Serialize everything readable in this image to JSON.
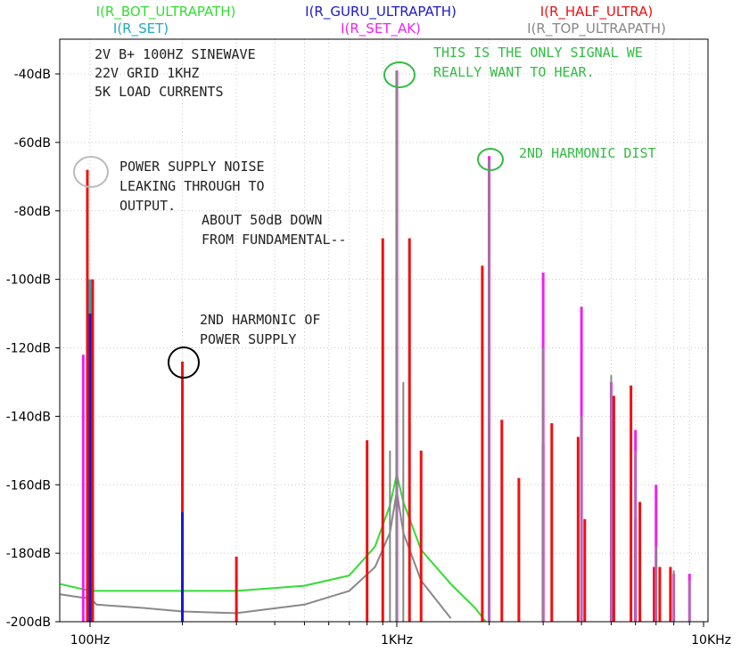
{
  "chart_data": {
    "type": "line",
    "title": "",
    "xlabel": "",
    "ylabel": "",
    "x_scale": "log",
    "xlim": [
      80,
      10000
    ],
    "ylim": [
      -200,
      -30
    ],
    "grid": true,
    "x_ticks": [
      {
        "value": 100,
        "label": "100Hz"
      },
      {
        "value": 1000,
        "label": "1KHz"
      },
      {
        "value": 10000,
        "label": "10KHz"
      }
    ],
    "y_ticks": [
      {
        "value": -40,
        "label": "-40dB"
      },
      {
        "value": -60,
        "label": "-60dB"
      },
      {
        "value": -80,
        "label": "-80dB"
      },
      {
        "value": -100,
        "label": "-100dB"
      },
      {
        "value": -120,
        "label": "-120dB"
      },
      {
        "value": -140,
        "label": "-140dB"
      },
      {
        "value": -160,
        "label": "-160dB"
      },
      {
        "value": -180,
        "label": "-180dB"
      },
      {
        "value": -200,
        "label": "-200dB"
      }
    ],
    "legend": [
      {
        "name": "I(R_BOT_ULTRAPATH)",
        "color": "#33dd33"
      },
      {
        "name": "I(R_SET)",
        "color": "#22aabb"
      },
      {
        "name": "I(R_GURU_ULTRAPATH)",
        "color": "#1a1acc"
      },
      {
        "name": "I(R_SET_AK)",
        "color": "#ee22ee"
      },
      {
        "name": "I(R_HALF_ULTRA)",
        "color": "#ee1111"
      },
      {
        "name": "I(R_TOP_ULTRAPATH)",
        "color": "#888888"
      }
    ],
    "series": [
      {
        "name": "I(R_BOT_ULTRAPATH)",
        "color": "#33dd33",
        "x": [
          80,
          100,
          150,
          200,
          300,
          500,
          700,
          850,
          950,
          1000,
          1050,
          1200,
          1500,
          1800,
          1950
        ],
        "y": [
          -189,
          -191,
          -191,
          -191,
          -191,
          -189.5,
          -186.5,
          -178,
          -166,
          -157,
          -165,
          -179,
          -189,
          -196,
          -200
        ]
      },
      {
        "name": "I(R_TOP_ULTRAPATH)",
        "color": "#888888",
        "x": [
          80,
          95,
          100,
          105,
          150,
          200,
          300,
          500,
          700,
          850,
          950,
          1000,
          1050,
          1200,
          1500
        ],
        "y": [
          -192,
          -193,
          -193,
          -195,
          -196,
          -197,
          -197.5,
          -195,
          -191,
          -184,
          -174,
          -162,
          -174,
          -188,
          -199
        ]
      },
      {
        "name": "I(R_HALF_ULTRA)",
        "color": "#ee1111",
        "style": "stem",
        "x": [
          98,
          102,
          200,
          300,
          800,
          900,
          1100,
          1200,
          1900,
          2200,
          2500,
          3000,
          3200,
          3900,
          4100,
          5100,
          5800,
          6000,
          6200,
          6900,
          7200,
          7800
        ],
        "y": [
          -68,
          -100,
          -124,
          -181,
          -147,
          -88,
          -88,
          -150,
          -96,
          -141,
          -158,
          -148,
          -142,
          -146,
          -170,
          -134,
          -131,
          -170,
          -165,
          -184,
          -184,
          -184
        ]
      },
      {
        "name": "I(R_SET_AK)",
        "color": "#ee22ee",
        "style": "stem",
        "x": [
          95,
          1000,
          2000,
          3000,
          4000,
          5000,
          6000,
          7000,
          8000,
          9000
        ],
        "y": [
          -122,
          -39,
          -64,
          -98,
          -108,
          -130,
          -144,
          -160,
          -186,
          -186
        ]
      },
      {
        "name": "I(R_SET)",
        "color": "#22aabb",
        "style": "stem",
        "x": [
          100
        ],
        "y": [
          -100
        ]
      },
      {
        "name": "I(R_GURU_ULTRAPATH)",
        "color": "#1a1acc",
        "style": "stem",
        "x": [
          100,
          200
        ],
        "y": [
          -110,
          -168
        ]
      }
    ],
    "annotations": [
      {
        "text": "2V B+ 100HZ SINEWAVE",
        "color": "#222222"
      },
      {
        "text": "22V GRID 1KHZ",
        "color": "#222222"
      },
      {
        "text": "5K LOAD CURRENTS",
        "color": "#222222"
      },
      {
        "text": "THIS IS THE ONLY SIGNAL WE",
        "color": "#33bb44"
      },
      {
        "text": "REALLY WANT TO HEAR.",
        "color": "#33bb44"
      },
      {
        "text": "2ND HARMONIC DIST",
        "color": "#33bb44"
      },
      {
        "text": "POWER SUPPLY NOISE",
        "color": "#222222"
      },
      {
        "text": "LEAKING THROUGH TO",
        "color": "#222222"
      },
      {
        "text": "OUTPUT.",
        "color": "#222222"
      },
      {
        "text": "ABOUT 50dB DOWN",
        "color": "#222222"
      },
      {
        "text": "FROM FUNDAMENTAL--",
        "color": "#222222"
      },
      {
        "text": "2ND HARMONIC OF",
        "color": "#222222"
      },
      {
        "text": "POWER SUPPLY",
        "color": "#222222"
      }
    ]
  }
}
